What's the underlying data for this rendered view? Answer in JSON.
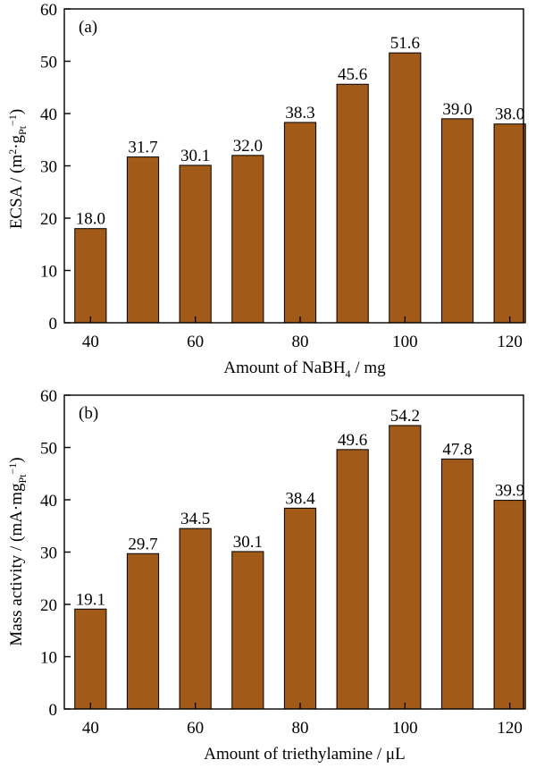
{
  "chart_data": [
    {
      "type": "bar",
      "panel_label": "(a)",
      "x": [
        40,
        50,
        60,
        70,
        80,
        90,
        100,
        110,
        120
      ],
      "values": [
        18.0,
        31.7,
        30.1,
        32.0,
        38.3,
        45.6,
        51.6,
        39.0,
        38.0
      ],
      "value_labels": [
        "18.0",
        "31.7",
        "30.1",
        "32.0",
        "38.3",
        "45.6",
        "51.6",
        "39.0",
        "38.0"
      ],
      "xticks": [
        40,
        60,
        80,
        100,
        120
      ],
      "yticks": [
        0,
        10,
        20,
        30,
        40,
        50,
        60
      ],
      "xlim": [
        35,
        125
      ],
      "ylim": [
        0,
        60
      ],
      "xlabel": "Amount of NaBH4 / mg",
      "ylabel": "ECSA / (m2·gPt−1)",
      "bar_color": "#a15a17",
      "grid": false,
      "legend": "none"
    },
    {
      "type": "bar",
      "panel_label": "(b)",
      "x": [
        40,
        50,
        60,
        70,
        80,
        90,
        100,
        110,
        120
      ],
      "values": [
        19.1,
        29.7,
        34.5,
        30.1,
        38.4,
        49.6,
        54.2,
        47.8,
        39.9
      ],
      "value_labels": [
        "19.1",
        "29.7",
        "34.5",
        "30.1",
        "38.4",
        "49.6",
        "54.2",
        "47.8",
        "39.9"
      ],
      "xticks": [
        40,
        60,
        80,
        100,
        120
      ],
      "yticks": [
        0,
        10,
        20,
        30,
        40,
        50,
        60
      ],
      "xlim": [
        35,
        125
      ],
      "ylim": [
        0,
        60
      ],
      "xlabel": "Amount of triethylamine / μL",
      "ylabel": "Mass activity / (mA·mgPt−1)",
      "bar_color": "#a15a17",
      "grid": false,
      "legend": "none"
    }
  ]
}
